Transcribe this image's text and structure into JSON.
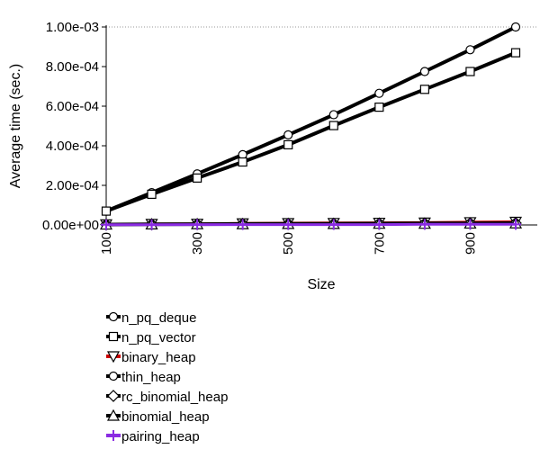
{
  "chart_data": {
    "type": "line",
    "xlabel": "Size",
    "ylabel": "Average time (sec.)",
    "xlim": [
      100,
      1000
    ],
    "ylim": [
      0,
      0.001
    ],
    "x": [
      100,
      200,
      300,
      400,
      500,
      600,
      700,
      800,
      900,
      1000
    ],
    "x_ticks": [
      100,
      300,
      500,
      700,
      900
    ],
    "x_tick_labels": [
      "100",
      "300",
      "500",
      "700",
      "900"
    ],
    "y_ticks": [
      0,
      0.0002,
      0.0004,
      0.0006,
      0.0008,
      0.001
    ],
    "y_tick_labels": [
      "0.00e+00",
      "2.00e-04",
      "4.00e-04",
      "6.00e-04",
      "8.00e-04",
      "1.00e-03"
    ],
    "top_gridline": true,
    "legend_position": "bottom-left",
    "series": [
      {
        "name": "n_pq_deque",
        "color": "#000000",
        "marker": "circle",
        "values": [
          7e-05,
          0.000163,
          0.000258,
          0.000355,
          0.000455,
          0.000557,
          0.000665,
          0.000775,
          0.000885,
          0.001
        ]
      },
      {
        "name": "n_pq_vector",
        "color": "#000000",
        "marker": "square",
        "values": [
          7e-05,
          0.000155,
          0.000237,
          0.000318,
          0.000405,
          0.000502,
          0.000595,
          0.000685,
          0.000775,
          0.00087
        ]
      },
      {
        "name": "binary_heap",
        "color": "#cc0000",
        "marker": "triangle-down",
        "values": [
          3e-06,
          5e-06,
          6e-06,
          8e-06,
          9e-06,
          1e-05,
          1.1e-05,
          1.2e-05,
          1.4e-05,
          1.6e-05
        ]
      },
      {
        "name": "thin_heap",
        "color": "#000000",
        "marker": "circle",
        "values": [
          2e-06,
          3e-06,
          4e-06,
          5e-06,
          6e-06,
          6e-06,
          7e-06,
          8e-06,
          8e-06,
          9e-06
        ]
      },
      {
        "name": "rc_binomial_heap",
        "color": "#000000",
        "marker": "diamond",
        "values": [
          2e-06,
          3e-06,
          4e-06,
          5e-06,
          5e-06,
          6e-06,
          7e-06,
          7e-06,
          8e-06,
          9e-06
        ]
      },
      {
        "name": "binomial_heap",
        "color": "#000000",
        "marker": "triangle-up",
        "values": [
          2e-06,
          3e-06,
          4e-06,
          4e-06,
          5e-06,
          5e-06,
          6e-06,
          6e-06,
          7e-06,
          8e-06
        ]
      },
      {
        "name": "pairing_heap",
        "color": "#8a2be2",
        "marker": "plus",
        "values": [
          1e-06,
          1e-06,
          2e-06,
          2e-06,
          2e-06,
          2e-06,
          2e-06,
          3e-06,
          3e-06,
          3e-06
        ]
      }
    ]
  }
}
